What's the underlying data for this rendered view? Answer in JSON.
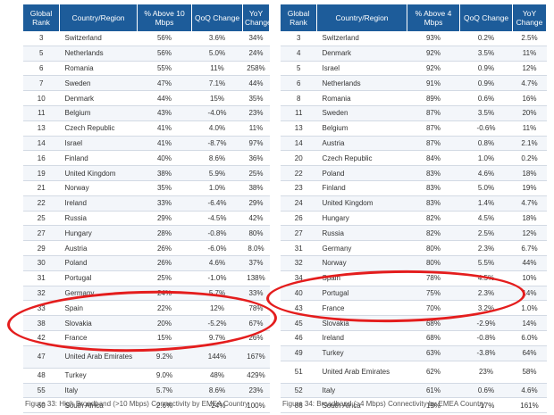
{
  "left_table": {
    "headers": [
      "Global Rank",
      "Country/Region",
      "% Above 10 Mbps",
      "QoQ Change",
      "YoY Change"
    ],
    "rows": [
      [
        "3",
        "Switzerland",
        "56%",
        "3.6%",
        "34%"
      ],
      [
        "5",
        "Netherlands",
        "56%",
        "5.0%",
        "24%"
      ],
      [
        "6",
        "Romania",
        "55%",
        "11%",
        "258%"
      ],
      [
        "7",
        "Sweden",
        "47%",
        "7.1%",
        "44%"
      ],
      [
        "10",
        "Denmark",
        "44%",
        "15%",
        "35%"
      ],
      [
        "11",
        "Belgium",
        "43%",
        "-4.0%",
        "23%"
      ],
      [
        "13",
        "Czech Republic",
        "41%",
        "4.0%",
        "11%"
      ],
      [
        "14",
        "Israel",
        "41%",
        "-8.7%",
        "97%"
      ],
      [
        "16",
        "Finland",
        "40%",
        "8.6%",
        "36%"
      ],
      [
        "19",
        "United Kingdom",
        "38%",
        "5.9%",
        "25%"
      ],
      [
        "21",
        "Norway",
        "35%",
        "1.0%",
        "38%"
      ],
      [
        "22",
        "Ireland",
        "33%",
        "-6.4%",
        "29%"
      ],
      [
        "25",
        "Russia",
        "29%",
        "-4.5%",
        "42%"
      ],
      [
        "27",
        "Hungary",
        "28%",
        "-0.8%",
        "80%"
      ],
      [
        "29",
        "Austria",
        "26%",
        "-6.0%",
        "8.0%"
      ],
      [
        "30",
        "Poland",
        "26%",
        "4.6%",
        "37%"
      ],
      [
        "31",
        "Portugal",
        "25%",
        "-1.0%",
        "138%"
      ],
      [
        "32",
        "Germany",
        "24%",
        "5.7%",
        "33%"
      ],
      [
        "33",
        "Spain",
        "22%",
        "12%",
        "78%"
      ],
      [
        "38",
        "Slovakia",
        "20%",
        "-5.2%",
        "67%"
      ],
      [
        "42",
        "France",
        "15%",
        "9.7%",
        "26%"
      ],
      [
        "47",
        "United Arab Emirates",
        "9.2%",
        "144%",
        "167%"
      ],
      [
        "48",
        "Turkey",
        "9.0%",
        "48%",
        "429%"
      ],
      [
        "55",
        "Italy",
        "5.7%",
        "8.6%",
        "23%"
      ],
      [
        "60",
        "South Africa",
        "2.6%",
        "-24%",
        "100%"
      ]
    ]
  },
  "right_table": {
    "headers": [
      "Global Rank",
      "Country/Region",
      "% Above 4 Mbps",
      "QoQ Change",
      "YoY Change"
    ],
    "rows": [
      [
        "3",
        "Switzerland",
        "93%",
        "0.2%",
        "2.5%"
      ],
      [
        "4",
        "Denmark",
        "92%",
        "3.5%",
        "11%"
      ],
      [
        "5",
        "Israel",
        "92%",
        "0.9%",
        "12%"
      ],
      [
        "6",
        "Netherlands",
        "91%",
        "0.9%",
        "4.7%"
      ],
      [
        "8",
        "Romania",
        "89%",
        "0.6%",
        "16%"
      ],
      [
        "11",
        "Sweden",
        "87%",
        "3.5%",
        "20%"
      ],
      [
        "13",
        "Belgium",
        "87%",
        "-0.6%",
        "11%"
      ],
      [
        "14",
        "Austria",
        "87%",
        "0.8%",
        "2.1%"
      ],
      [
        "20",
        "Czech Republic",
        "84%",
        "1.0%",
        "0.2%"
      ],
      [
        "22",
        "Poland",
        "83%",
        "4.6%",
        "18%"
      ],
      [
        "23",
        "Finland",
        "83%",
        "5.0%",
        "19%"
      ],
      [
        "24",
        "United Kingdom",
        "83%",
        "1.4%",
        "4.7%"
      ],
      [
        "26",
        "Hungary",
        "82%",
        "4.5%",
        "18%"
      ],
      [
        "27",
        "Russia",
        "82%",
        "2.5%",
        "12%"
      ],
      [
        "31",
        "Germany",
        "80%",
        "2.3%",
        "6.7%"
      ],
      [
        "32",
        "Norway",
        "80%",
        "5.5%",
        "44%"
      ],
      [
        "34",
        "Spain",
        "78%",
        "4.5%",
        "10%"
      ],
      [
        "40",
        "Portugal",
        "75%",
        "2.3%",
        "14%"
      ],
      [
        "43",
        "France",
        "70%",
        "3.2%",
        "1.0%"
      ],
      [
        "45",
        "Slovakia",
        "68%",
        "-2.9%",
        "14%"
      ],
      [
        "46",
        "Ireland",
        "68%",
        "-0.8%",
        "6.0%"
      ],
      [
        "49",
        "Turkey",
        "63%",
        "-3.8%",
        "64%"
      ],
      [
        "51",
        "United Arab Emirates",
        "62%",
        "23%",
        "58%"
      ],
      [
        "52",
        "Italy",
        "61%",
        "0.6%",
        "4.6%"
      ],
      [
        "86",
        "South Africa",
        "19%",
        "-17%",
        "161%"
      ]
    ]
  },
  "captions": {
    "left": "Figure 33: High Broadband (>10 Mbps) Connectivity by EMEA Country",
    "right": "Figure 34: Broadband (>4 Mbps) Connectivity by EMEA Country"
  },
  "colors": {
    "header_bg": "#1d5c9a",
    "highlight": "#e41d1d"
  }
}
